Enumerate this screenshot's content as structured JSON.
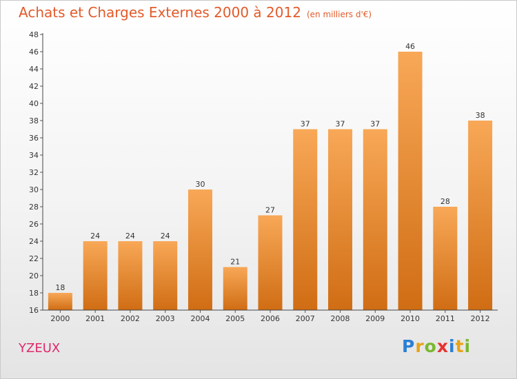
{
  "header": {
    "title": "Achats et Charges Externes 2000 à 2012",
    "unit": "(en milliers d'€)"
  },
  "commune": "YZEUX",
  "logo": {
    "letters": [
      "P",
      "r",
      "o",
      "x",
      "i",
      "t",
      "i"
    ],
    "colors": [
      "#2a7fd4",
      "#e8a317",
      "#7ab82f",
      "#e8312f",
      "#2a7fd4",
      "#e8a317",
      "#7ab82f"
    ]
  },
  "colors": {
    "bar_top": "#f8a857",
    "bar_bottom": "#d06d14",
    "title": "#e25a2a",
    "commune": "#e0286b"
  },
  "chart_data": {
    "type": "bar",
    "title": "Achats et Charges Externes 2000 à 2012",
    "subtitle": "(en milliers d'€)",
    "categories": [
      "2000",
      "2001",
      "2002",
      "2003",
      "2004",
      "2005",
      "2006",
      "2007",
      "2008",
      "2009",
      "2010",
      "2011",
      "2012"
    ],
    "values": [
      18,
      24,
      24,
      24,
      30,
      21,
      27,
      37,
      37,
      37,
      46,
      28,
      38
    ],
    "ylim": [
      16,
      48
    ],
    "yticks": [
      16,
      18,
      20,
      22,
      24,
      26,
      28,
      30,
      32,
      34,
      36,
      38,
      40,
      42,
      44,
      46,
      48
    ],
    "grid": false,
    "data_labels": true
  }
}
